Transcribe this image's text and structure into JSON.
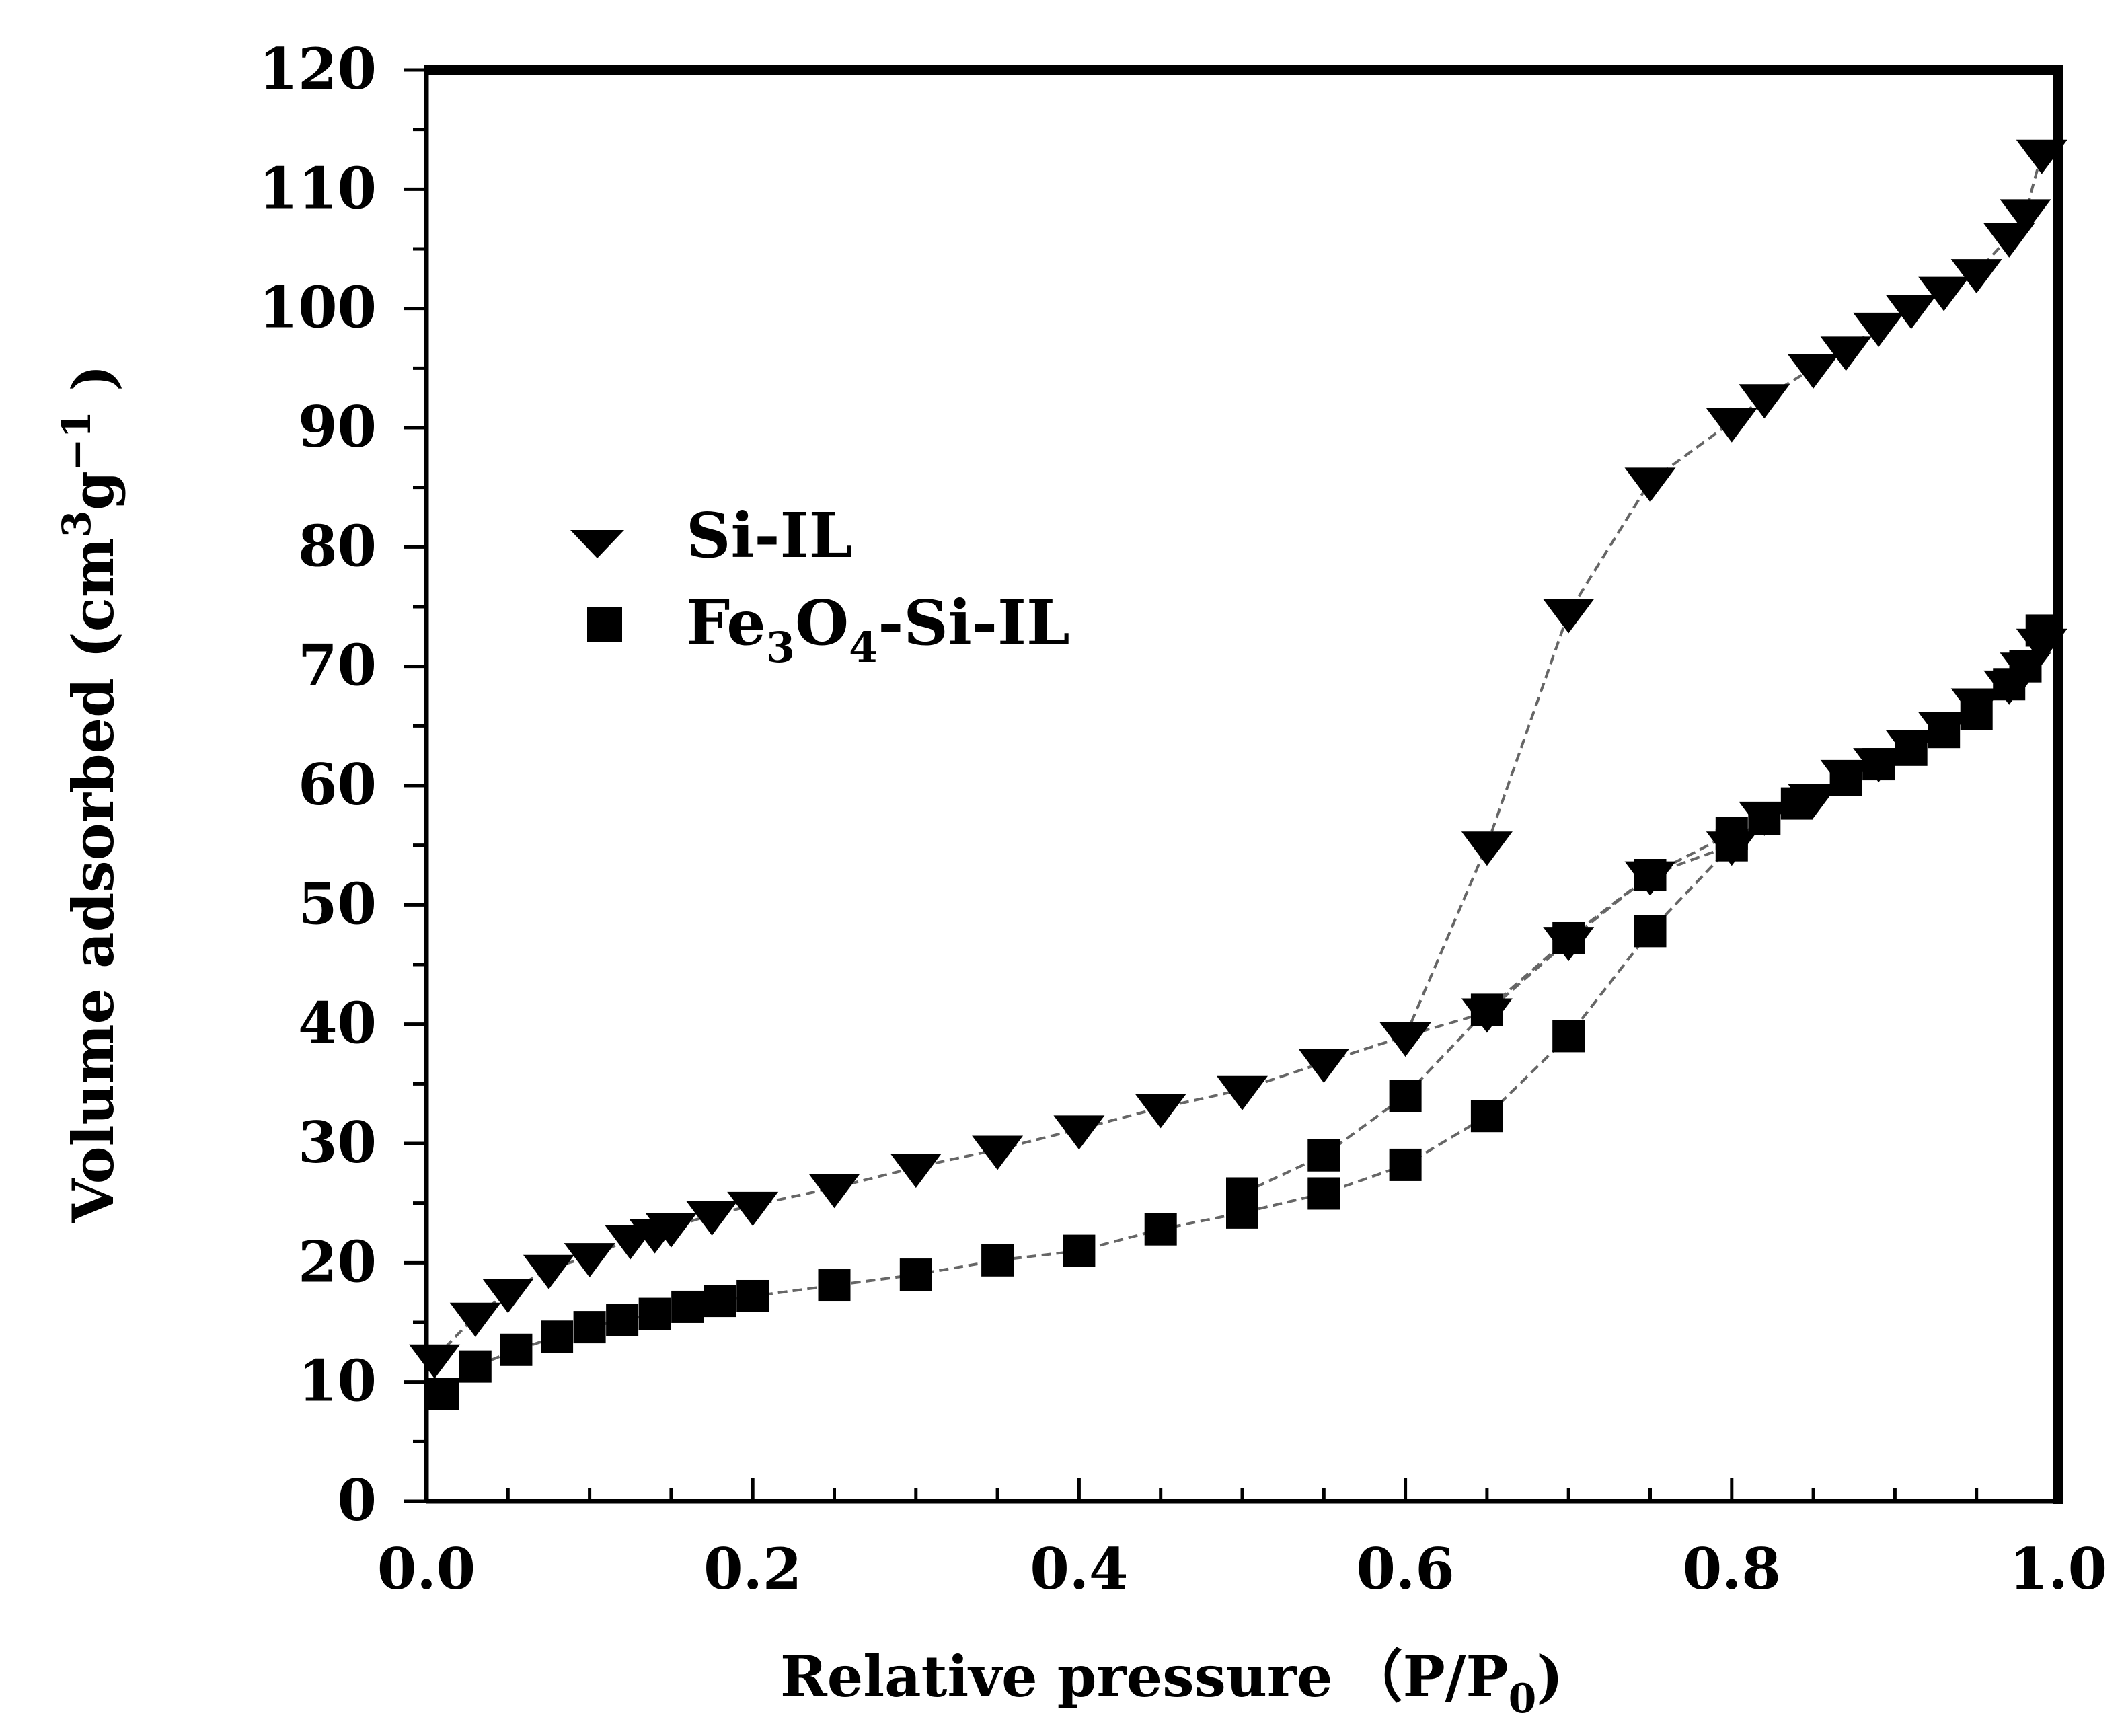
{
  "chart_data": {
    "type": "scatter",
    "title": "",
    "xlabel": "Relative pressure",
    "xlabel_paren": "（P/P",
    "xlabel_sub": "0",
    "xlabel_close": ")",
    "ylabel": "Volume adsorbed (cm",
    "ylabel_sup1": "3",
    "ylabel_mid": "g",
    "ylabel_sup2": "−1",
    "ylabel_close": " )",
    "xlim": [
      0.0,
      1.0
    ],
    "ylim": [
      0,
      120
    ],
    "xticks": [
      "0.0",
      "0.2",
      "0.4",
      "0.6",
      "0.8",
      "1.0"
    ],
    "yticks": [
      "0",
      "10",
      "20",
      "30",
      "40",
      "50",
      "60",
      "70",
      "80",
      "90",
      "100",
      "110",
      "120"
    ],
    "legend_position": "upper-left",
    "series": [
      {
        "name": "Si-IL",
        "legend_main": "Si-IL",
        "marker": "triangle-down",
        "branches": [
          {
            "label": "adsorption",
            "x": [
              0.005,
              0.03,
              0.05,
              0.075,
              0.1,
              0.125,
              0.14,
              0.15,
              0.175,
              0.2,
              0.25,
              0.3,
              0.35,
              0.4,
              0.45,
              0.5,
              0.55,
              0.6,
              0.65,
              0.7,
              0.75,
              0.8,
              0.82,
              0.85,
              0.87,
              0.89,
              0.91,
              0.93,
              0.95,
              0.97,
              0.98,
              0.99
            ],
            "y": [
              12,
              15.5,
              17.5,
              19.5,
              20.5,
              22,
              22.5,
              23,
              24,
              24.8,
              26.3,
              28,
              29.5,
              31.2,
              33,
              34.5,
              36.8,
              39,
              41,
              47,
              52.5,
              55,
              57.5,
              59,
              61,
              62,
              63.5,
              65,
              67,
              68.5,
              70,
              72
            ]
          },
          {
            "label": "desorption",
            "x": [
              0.6,
              0.65,
              0.7,
              0.75,
              0.8,
              0.82,
              0.85,
              0.87,
              0.89,
              0.91,
              0.93,
              0.95,
              0.97,
              0.98,
              0.99
            ],
            "y": [
              39,
              55,
              74.5,
              85.5,
              90.5,
              92.5,
              95,
              96.5,
              98.5,
              100,
              101.5,
              103,
              106,
              108,
              113
            ]
          }
        ]
      },
      {
        "name": "Fe3O4-Si-IL",
        "legend_fe": "Fe",
        "legend_sub1": "3",
        "legend_o": "O",
        "legend_sub2": "4",
        "legend_rest": "-Si-IL",
        "marker": "square",
        "branches": [
          {
            "label": "adsorption",
            "x": [
              0.01,
              0.03,
              0.055,
              0.08,
              0.1,
              0.12,
              0.14,
              0.16,
              0.18,
              0.2,
              0.25,
              0.3,
              0.35,
              0.4,
              0.45,
              0.5,
              0.55,
              0.6,
              0.65,
              0.7,
              0.75,
              0.8,
              0.82,
              0.84,
              0.87,
              0.89,
              0.91,
              0.93,
              0.95,
              0.97,
              0.98,
              0.99
            ],
            "y": [
              9,
              11.3,
              12.7,
              13.8,
              14.6,
              15.2,
              15.7,
              16.3,
              16.8,
              17.2,
              18.1,
              19,
              20.2,
              21,
              22.8,
              24.2,
              25.8,
              28.2,
              32.3,
              39,
              47.8,
              55,
              57.2,
              58.5,
              60.5,
              61.8,
              63,
              64.5,
              66,
              68.5,
              70,
              73
            ]
          },
          {
            "label": "desorption",
            "x": [
              0.5,
              0.55,
              0.6,
              0.65,
              0.7,
              0.75,
              0.8
            ],
            "y": [
              25.8,
              29,
              34,
              41.2,
              47.2,
              52.5,
              56
            ]
          }
        ]
      }
    ]
  }
}
